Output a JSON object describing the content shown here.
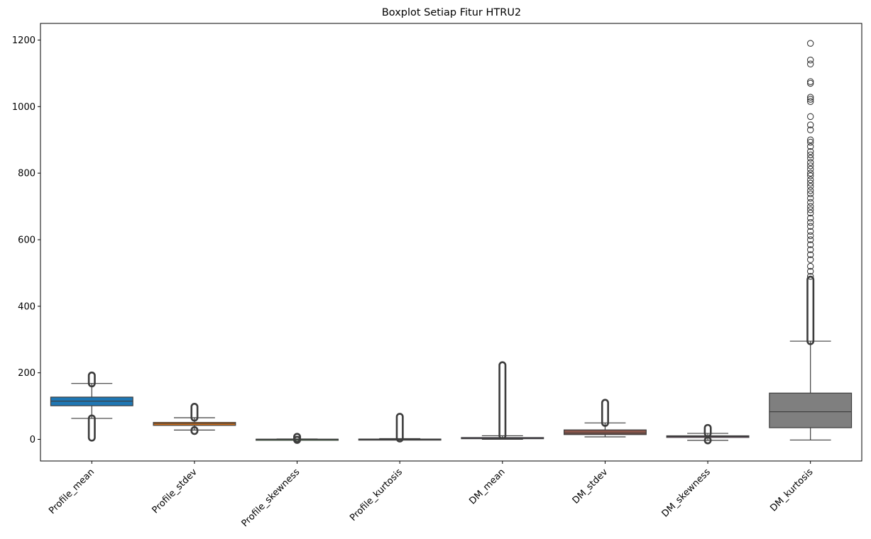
{
  "chart_data": {
    "type": "boxplot",
    "title": "Boxplot Setiap Fitur HTRU2",
    "xlabel": "",
    "ylabel": "",
    "ylim": [
      -65,
      1250
    ],
    "yticks": [
      0,
      200,
      400,
      600,
      800,
      1000,
      1200
    ],
    "grid": false,
    "legend": "none",
    "categories": [
      "Profile_mean",
      "Profile_stdev",
      "Profile_skewness",
      "Profile_kurtosis",
      "DM_mean",
      "DM_stdev",
      "DM_skewness",
      "DM_kurtosis"
    ],
    "colors": [
      "#1f77b4",
      "#ff7f0e",
      "#2ca02c",
      "#d62728",
      "#9467bd",
      "#8c564b",
      "#e377c2",
      "#7f7f7f"
    ],
    "boxes": [
      {
        "whisker_low": 63,
        "q1": 101,
        "median": 115,
        "q3": 127,
        "whisker_high": 168,
        "outlier_ranges": [
          [
            5,
            63
          ],
          [
            168,
            192
          ]
        ],
        "outliers": []
      },
      {
        "whisker_low": 28,
        "q1": 42,
        "median": 46.9,
        "q3": 51,
        "whisker_high": 65,
        "outlier_ranges": [
          [
            25,
            28
          ],
          [
            65,
            98
          ]
        ],
        "outliers": []
      },
      {
        "whisker_low": -1,
        "q1": 0.03,
        "median": 0.22,
        "q3": 0.47,
        "whisker_high": 1.1,
        "outlier_ranges": [
          [
            -1.8,
            -1
          ],
          [
            1.1,
            7.7
          ]
        ],
        "outliers": []
      },
      {
        "whisker_low": -1.5,
        "q1": -0.19,
        "median": 0.2,
        "q3": 0.93,
        "whisker_high": 2.3,
        "outlier_ranges": [
          [
            2.3,
            68
          ]
        ],
        "outliers": []
      },
      {
        "whisker_low": 0.2,
        "q1": 1.92,
        "median": 2.8,
        "q3": 5.46,
        "whisker_high": 10.8,
        "outlier_ranges": [
          [
            10.8,
            223
          ]
        ],
        "outliers": []
      },
      {
        "whisker_low": 7.4,
        "q1": 14.4,
        "median": 18.5,
        "q3": 28.4,
        "whisker_high": 49.4,
        "outlier_ranges": [
          [
            49.4,
            110
          ]
        ],
        "outliers": []
      },
      {
        "whisker_low": -3,
        "q1": 5.8,
        "median": 8.4,
        "q3": 10.7,
        "whisker_high": 18,
        "outlier_ranges": [
          [
            -3.1,
            -3
          ],
          [
            18,
            34.5
          ]
        ],
        "outliers": []
      },
      {
        "whisker_low": -2,
        "q1": 35,
        "median": 83,
        "q3": 139,
        "whisker_high": 295,
        "outlier_ranges": [
          [
            295,
            480
          ]
        ],
        "outliers": [
          490,
          505,
          520,
          540,
          555,
          570,
          585,
          600,
          612,
          625,
          640,
          652,
          665,
          680,
          690,
          700,
          712,
          725,
          738,
          748,
          760,
          770,
          780,
          792,
          800,
          812,
          822,
          832,
          845,
          855,
          865,
          880,
          893,
          900,
          930,
          945,
          970,
          1015,
          1022,
          1028,
          1070,
          1075,
          1128,
          1140,
          1190
        ]
      }
    ]
  }
}
